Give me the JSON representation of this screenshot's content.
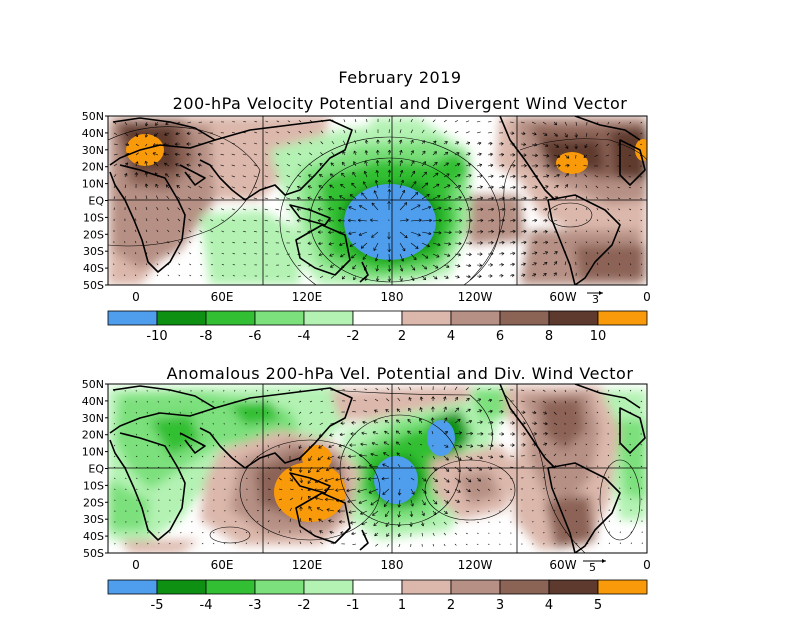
{
  "header": {
    "title": "February 2019"
  },
  "panels": [
    {
      "id": "top",
      "title": "200-hPa Velocity Potential and Divergent Wind Vector",
      "lat_labels": [
        "50N",
        "40N",
        "30N",
        "20N",
        "10N",
        "EQ",
        "10S",
        "20S",
        "30S",
        "40S",
        "50S"
      ],
      "lon_labels": [
        "0",
        "60E",
        "120E",
        "180",
        "120W",
        "60W",
        "0"
      ],
      "ref_vector_label": "3",
      "colorbar": {
        "colors": [
          "#4f9eed",
          "#0e9112",
          "#33bf33",
          "#7ce07c",
          "#b3f2b3",
          "#ffffff",
          "#dcb8ac",
          "#b69084",
          "#8c6456",
          "#5e3a2e",
          "#f99a0a"
        ],
        "labels": [
          "-10",
          "-8",
          "-6",
          "-4",
          "-2",
          "2",
          "4",
          "6",
          "8",
          "10"
        ]
      }
    },
    {
      "id": "bottom",
      "title": "Anomalous 200-hPa Vel. Potential and Div. Wind Vector",
      "lat_labels": [
        "50N",
        "40N",
        "30N",
        "20N",
        "10N",
        "EQ",
        "10S",
        "20S",
        "30S",
        "40S",
        "50S"
      ],
      "lon_labels": [
        "0",
        "60E",
        "120E",
        "180",
        "120W",
        "60W",
        "0"
      ],
      "ref_vector_label": "5",
      "colorbar": {
        "colors": [
          "#4f9eed",
          "#0e9112",
          "#33bf33",
          "#7ce07c",
          "#b3f2b3",
          "#ffffff",
          "#dcb8ac",
          "#b69084",
          "#8c6456",
          "#5e3a2e",
          "#f99a0a"
        ],
        "labels": [
          "-5",
          "-4",
          "-3",
          "-2",
          "-1",
          "1",
          "2",
          "3",
          "4",
          "5"
        ]
      }
    }
  ]
}
